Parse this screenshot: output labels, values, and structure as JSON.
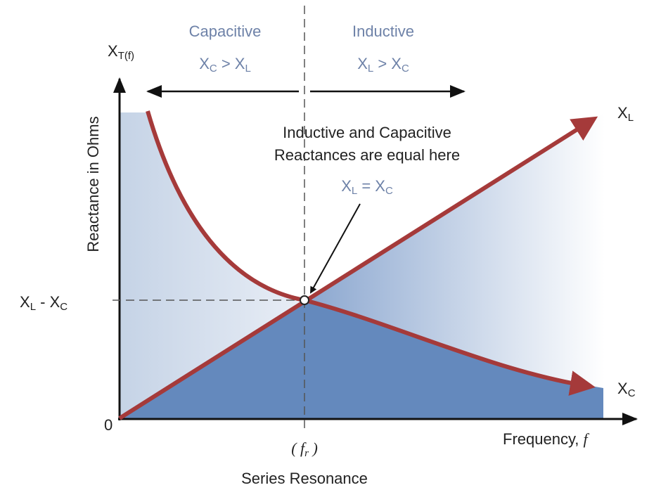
{
  "regions": {
    "capacitive": {
      "title": "Capacitive",
      "condition": [
        "X",
        "C",
        " > X",
        "L"
      ]
    },
    "inductive": {
      "title": "Inductive",
      "condition": [
        "X",
        "L",
        " > X",
        "C"
      ]
    }
  },
  "y_axis": {
    "label": "Reactance in Ohms",
    "symbol": [
      "X",
      "T(f)"
    ],
    "origin": "0",
    "level": [
      "X",
      "L",
      " - X",
      "C"
    ]
  },
  "x_axis": {
    "label": [
      "Frequency, ",
      "f"
    ],
    "resonance": [
      "( f",
      "r",
      " )"
    ],
    "resonance_caption": "Series Resonance"
  },
  "curves": {
    "inductive": [
      "X",
      "L"
    ],
    "capacitive": [
      "X",
      "C"
    ]
  },
  "annotation": {
    "lines": [
      "Inductive and Capacitive",
      "Reactances are equal here"
    ],
    "equation": [
      "X",
      "L",
      " = X",
      "C"
    ]
  }
}
